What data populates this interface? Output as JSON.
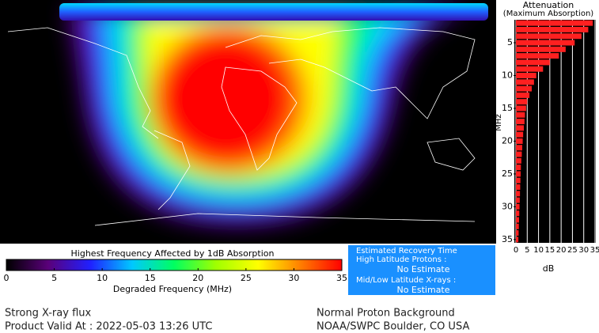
{
  "chart_data": [
    {
      "type": "hbar",
      "title": "Attenuation",
      "subtitle": "(Maximum Absorption)",
      "x_label": "dB",
      "y_label": "MHz",
      "categories": [
        2,
        3,
        4,
        5,
        6,
        7,
        8,
        9,
        10,
        11,
        12,
        13,
        14,
        15,
        16,
        17,
        18,
        19,
        20,
        21,
        22,
        23,
        24,
        25,
        26,
        27,
        28,
        29,
        30,
        31,
        32,
        33,
        34,
        35
      ],
      "values": [
        34,
        32,
        29,
        26,
        22,
        19,
        15,
        12,
        9,
        8,
        7,
        6,
        5,
        4.5,
        4,
        3.8,
        3.5,
        3.2,
        3,
        2.8,
        2.6,
        2.4,
        2.2,
        2.1,
        2,
        1.9,
        1.8,
        1.7,
        1.6,
        1.5,
        1.4,
        1.3,
        1.2,
        1.1
      ],
      "color": "#ff2020",
      "xlim": [
        0,
        35
      ],
      "xticks": [
        0,
        5,
        10,
        15,
        20,
        25,
        30,
        35
      ],
      "ylim": [
        1.5,
        35.5
      ],
      "yticks": [
        5,
        10,
        15,
        20,
        25,
        30,
        35
      ],
      "grid": true
    },
    {
      "type": "colorbar",
      "title": "Highest Frequency Affected by 1dB Absorption",
      "x_label": "Degraded Frequency (MHz)",
      "xlim": [
        0,
        35
      ],
      "xticks": [
        0,
        5,
        10,
        15,
        20,
        25,
        30,
        35
      ],
      "colors": [
        "#000000",
        "#5a007a",
        "#2020ff",
        "#00c8ff",
        "#00ff60",
        "#a0ff00",
        "#ffff00",
        "#ff8000",
        "#ff0000"
      ]
    }
  ],
  "recovery": {
    "title": "Estimated Recovery Time",
    "high_label": "High Latitude Protons :",
    "high_value": "No Estimate",
    "low_label": "Mid/Low Latitude X-rays :",
    "low_value": "No Estimate"
  },
  "footer": {
    "left1": "Strong X-ray flux",
    "left2": "Product Valid At : 2022-05-03 13:26 UTC",
    "right1": "Normal Proton Background",
    "right2": "NOAA/SWPC Boulder, CO USA"
  }
}
